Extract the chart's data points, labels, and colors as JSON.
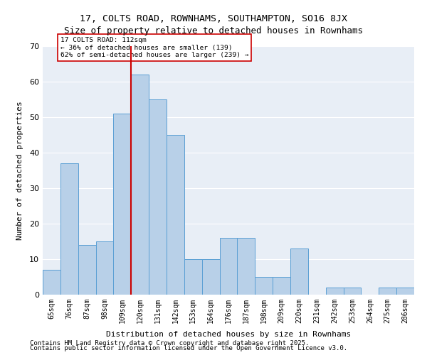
{
  "title_line1": "17, COLTS ROAD, ROWNHAMS, SOUTHAMPTON, SO16 8JX",
  "title_line2": "Size of property relative to detached houses in Rownhams",
  "xlabel": "Distribution of detached houses by size in Rownhams",
  "ylabel": "Number of detached properties",
  "categories": [
    "65sqm",
    "76sqm",
    "87sqm",
    "98sqm",
    "109sqm",
    "120sqm",
    "131sqm",
    "142sqm",
    "153sqm",
    "164sqm",
    "176sqm",
    "187sqm",
    "198sqm",
    "209sqm",
    "220sqm",
    "231sqm",
    "242sqm",
    "253sqm",
    "264sqm",
    "275sqm",
    "286sqm"
  ],
  "values": [
    7,
    37,
    14,
    15,
    51,
    62,
    55,
    45,
    10,
    10,
    16,
    16,
    5,
    5,
    13,
    0,
    2,
    2,
    0,
    2,
    2
  ],
  "bar_color": "#b8d0e8",
  "bar_edge_color": "#5a9fd4",
  "bg_color": "#e8eef6",
  "grid_color": "#ffffff",
  "vline_x": 4.5,
  "vline_color": "#cc0000",
  "annotation_text": "17 COLTS ROAD: 112sqm\n← 36% of detached houses are smaller (139)\n62% of semi-detached houses are larger (239) →",
  "annotation_box_color": "#ffffff",
  "annotation_box_edge": "#cc0000",
  "ylim": [
    0,
    70
  ],
  "yticks": [
    0,
    10,
    20,
    30,
    40,
    50,
    60,
    70
  ],
  "footer_line1": "Contains HM Land Registry data © Crown copyright and database right 2025.",
  "footer_line2": "Contains public sector information licensed under the Open Government Licence v3.0."
}
